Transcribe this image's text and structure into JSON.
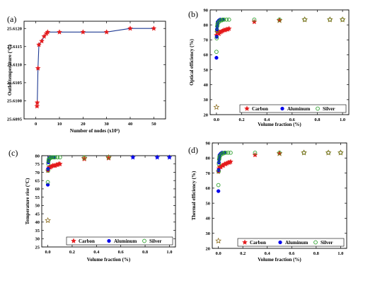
{
  "chart_data": [
    {
      "panel_label": "(a)",
      "type": "line",
      "xlabel": "Number of nodes (x10⁵)",
      "ylabel": "Outlet temperature (°C)",
      "xlim": [
        -5,
        55
      ],
      "ylim": [
        25.6095,
        25.6122
      ],
      "xticks": [
        0,
        10,
        20,
        30,
        40,
        50
      ],
      "yticks": [
        25.6095,
        25.61,
        25.6105,
        25.611,
        25.6115,
        25.612
      ],
      "ytick_labels": [
        "25.6095",
        "25.6100",
        "25.6105",
        "25.6110",
        "25.6115",
        "25.6120"
      ],
      "series": [
        {
          "color": "#e41a1c",
          "marker": "star",
          "line_color": "#1f3a93",
          "points": [
            [
              0.5,
              25.60985
            ],
            [
              0.6,
              25.60995
            ],
            [
              0.9,
              25.6109
            ],
            [
              1.3,
              25.61155
            ],
            [
              2.5,
              25.61165
            ],
            [
              3.5,
              25.61178
            ],
            [
              4.5,
              25.61186
            ],
            [
              5,
              25.6119
            ],
            [
              10,
              25.6119
            ],
            [
              20,
              25.6119
            ],
            [
              30,
              25.6119
            ],
            [
              40,
              25.612
            ],
            [
              50,
              25.612
            ]
          ]
        }
      ]
    },
    {
      "panel_label": "(b)",
      "type": "scatter",
      "xlabel": "Volume fraction (%)",
      "ylabel": "Optical efficiency (%)",
      "xlim": [
        -0.05,
        1.05
      ],
      "ylim": [
        20,
        90
      ],
      "xticks": [
        0.0,
        0.2,
        0.4,
        0.6,
        0.8,
        1.0
      ],
      "xtick_labels": [
        "0.0",
        "0.2",
        "0.4",
        "0.6",
        "0.8",
        "1.0"
      ],
      "yticks": [
        20,
        30,
        40,
        50,
        60,
        70,
        80,
        90
      ],
      "legend": {
        "position": "bottom-right",
        "entries": [
          "Carbon",
          "Aluminum",
          "Silver"
        ]
      },
      "series": [
        {
          "name": "Carbon",
          "color": "#e41a1c",
          "marker": "star",
          "x": [
            0.0,
            0.005,
            0.01,
            0.02,
            0.03,
            0.04,
            0.05,
            0.06,
            0.07,
            0.08,
            0.09,
            0.1,
            0.3,
            0.5
          ],
          "y": [
            73,
            75,
            76,
            74,
            75,
            75.5,
            76,
            76.5,
            76.5,
            77,
            77,
            77.5,
            82,
            83
          ]
        },
        {
          "name": "Aluminum",
          "color": "#0000ee",
          "marker": "circle",
          "x": [
            0.0,
            0.002,
            0.004,
            0.006,
            0.008,
            0.01,
            0.02,
            0.03,
            0.05
          ],
          "y": [
            58,
            72,
            77,
            79,
            81,
            82,
            83,
            83.5,
            83.5
          ]
        },
        {
          "name": "Silver",
          "color": "#2ca02c",
          "marker": "circle-open",
          "x": [
            0.0,
            0.002,
            0.004,
            0.006,
            0.008,
            0.01,
            0.02,
            0.03,
            0.04,
            0.05,
            0.06,
            0.08,
            0.1,
            0.3,
            0.5,
            0.7,
            0.9,
            1.0
          ],
          "y": [
            62,
            71,
            76,
            79,
            80,
            81,
            82,
            83,
            83,
            83.5,
            83.5,
            83.5,
            83.5,
            83.5,
            83.5,
            83.5,
            83.5,
            83.5
          ]
        },
        {
          "name": "",
          "color": "#8c6d1f",
          "marker": "star-open",
          "x": [
            0.0,
            0.5,
            0.7,
            0.9,
            1.0
          ],
          "y": [
            25,
            83,
            83.5,
            83.5,
            83.5
          ]
        }
      ]
    },
    {
      "panel_label": "(c)",
      "type": "scatter",
      "xlabel": "Volume fraction (%)",
      "ylabel": "Temperature rise (°C)",
      "xlim": [
        -0.05,
        1.05
      ],
      "ylim": [
        25,
        80
      ],
      "xticks": [
        0.0,
        0.2,
        0.4,
        0.6,
        0.8,
        1.0
      ],
      "xtick_labels": [
        "0.0",
        "0.2",
        "0.4",
        "0.6",
        "0.8",
        "1.0"
      ],
      "yticks": [
        25,
        30,
        35,
        40,
        45,
        50,
        55,
        60,
        65,
        70,
        75,
        80
      ],
      "legend": {
        "position": "bottom-right",
        "entries": [
          "Carbon",
          "Aluminum",
          "Silver"
        ]
      },
      "series": [
        {
          "name": "Carbon",
          "color": "#e41a1c",
          "marker": "star",
          "x": [
            0.0,
            0.005,
            0.01,
            0.02,
            0.03,
            0.04,
            0.05,
            0.06,
            0.07,
            0.08,
            0.09,
            0.1,
            0.3,
            0.5
          ],
          "y": [
            71,
            72,
            73,
            73,
            73.5,
            74,
            74,
            74,
            74.5,
            74.5,
            75,
            75,
            78,
            78.5
          ]
        },
        {
          "name": "Aluminum",
          "color": "#0000ee",
          "marker": "circle",
          "x": [
            0.0,
            0.002,
            0.004,
            0.006,
            0.008,
            0.01,
            0.02,
            0.03,
            0.05
          ],
          "y": [
            62.5,
            72,
            76,
            77,
            78,
            78.5,
            78.5,
            79,
            79
          ]
        },
        {
          "name": "",
          "color": "#0000ee",
          "marker": "star",
          "x": [
            0.7,
            0.9,
            1.0
          ],
          "y": [
            79,
            79,
            79
          ]
        },
        {
          "name": "Silver",
          "color": "#2ca02c",
          "marker": "circle-open",
          "x": [
            0.0,
            0.002,
            0.004,
            0.006,
            0.008,
            0.01,
            0.02,
            0.03,
            0.04,
            0.05,
            0.06,
            0.08,
            0.1,
            0.3,
            0.5
          ],
          "y": [
            64,
            71,
            75,
            77,
            77.5,
            78,
            78.5,
            79,
            79,
            79,
            79,
            79,
            79,
            79,
            79
          ]
        },
        {
          "name": "",
          "color": "#8c6d1f",
          "marker": "star-open",
          "x": [
            0.0,
            0.3,
            0.5
          ],
          "y": [
            41,
            78.5,
            79
          ]
        }
      ]
    },
    {
      "panel_label": "(d)",
      "type": "scatter",
      "xlabel": "Volume fraction (%)",
      "ylabel": "Thermal efficiency (%)",
      "xlim": [
        -0.05,
        1.05
      ],
      "ylim": [
        20,
        90
      ],
      "xticks": [
        0.0,
        0.2,
        0.4,
        0.6,
        0.8,
        1.0
      ],
      "xtick_labels": [
        "0.0",
        "0.2",
        "0.4",
        "0.6",
        "0.8",
        "1.0"
      ],
      "yticks": [
        20,
        30,
        40,
        50,
        60,
        70,
        80,
        90
      ],
      "legend": {
        "position": "bottom-right",
        "entries": [
          "Carbon",
          "Aluminum",
          "Silver"
        ]
      },
      "series": [
        {
          "name": "Carbon",
          "color": "#e41a1c",
          "marker": "star",
          "x": [
            0.0,
            0.005,
            0.01,
            0.02,
            0.03,
            0.04,
            0.05,
            0.06,
            0.07,
            0.08,
            0.09,
            0.1,
            0.3,
            0.5
          ],
          "y": [
            71,
            73,
            74,
            74,
            75,
            75,
            76,
            76,
            76.5,
            77,
            77,
            77.5,
            82,
            83
          ]
        },
        {
          "name": "Aluminum",
          "color": "#0000ee",
          "marker": "circle",
          "x": [
            0.0,
            0.002,
            0.004,
            0.006,
            0.008,
            0.01,
            0.02,
            0.03,
            0.05
          ],
          "y": [
            58,
            72,
            77,
            79,
            81,
            82,
            83,
            83.5,
            83.5
          ]
        },
        {
          "name": "Silver",
          "color": "#2ca02c",
          "marker": "circle-open",
          "x": [
            0.0,
            0.002,
            0.004,
            0.006,
            0.008,
            0.01,
            0.02,
            0.03,
            0.04,
            0.05,
            0.06,
            0.08,
            0.1,
            0.3,
            0.5,
            0.7,
            0.9,
            1.0
          ],
          "y": [
            62,
            71,
            76,
            79,
            80,
            81,
            82,
            83,
            83,
            83.5,
            83.5,
            83.5,
            83.5,
            83.5,
            83.5,
            83.5,
            83.5,
            83.5
          ]
        },
        {
          "name": "",
          "color": "#8c6d1f",
          "marker": "star-open",
          "x": [
            0.0,
            0.5,
            0.7,
            0.9,
            1.0
          ],
          "y": [
            25,
            83,
            83.5,
            83.5,
            83.5
          ]
        }
      ]
    }
  ]
}
